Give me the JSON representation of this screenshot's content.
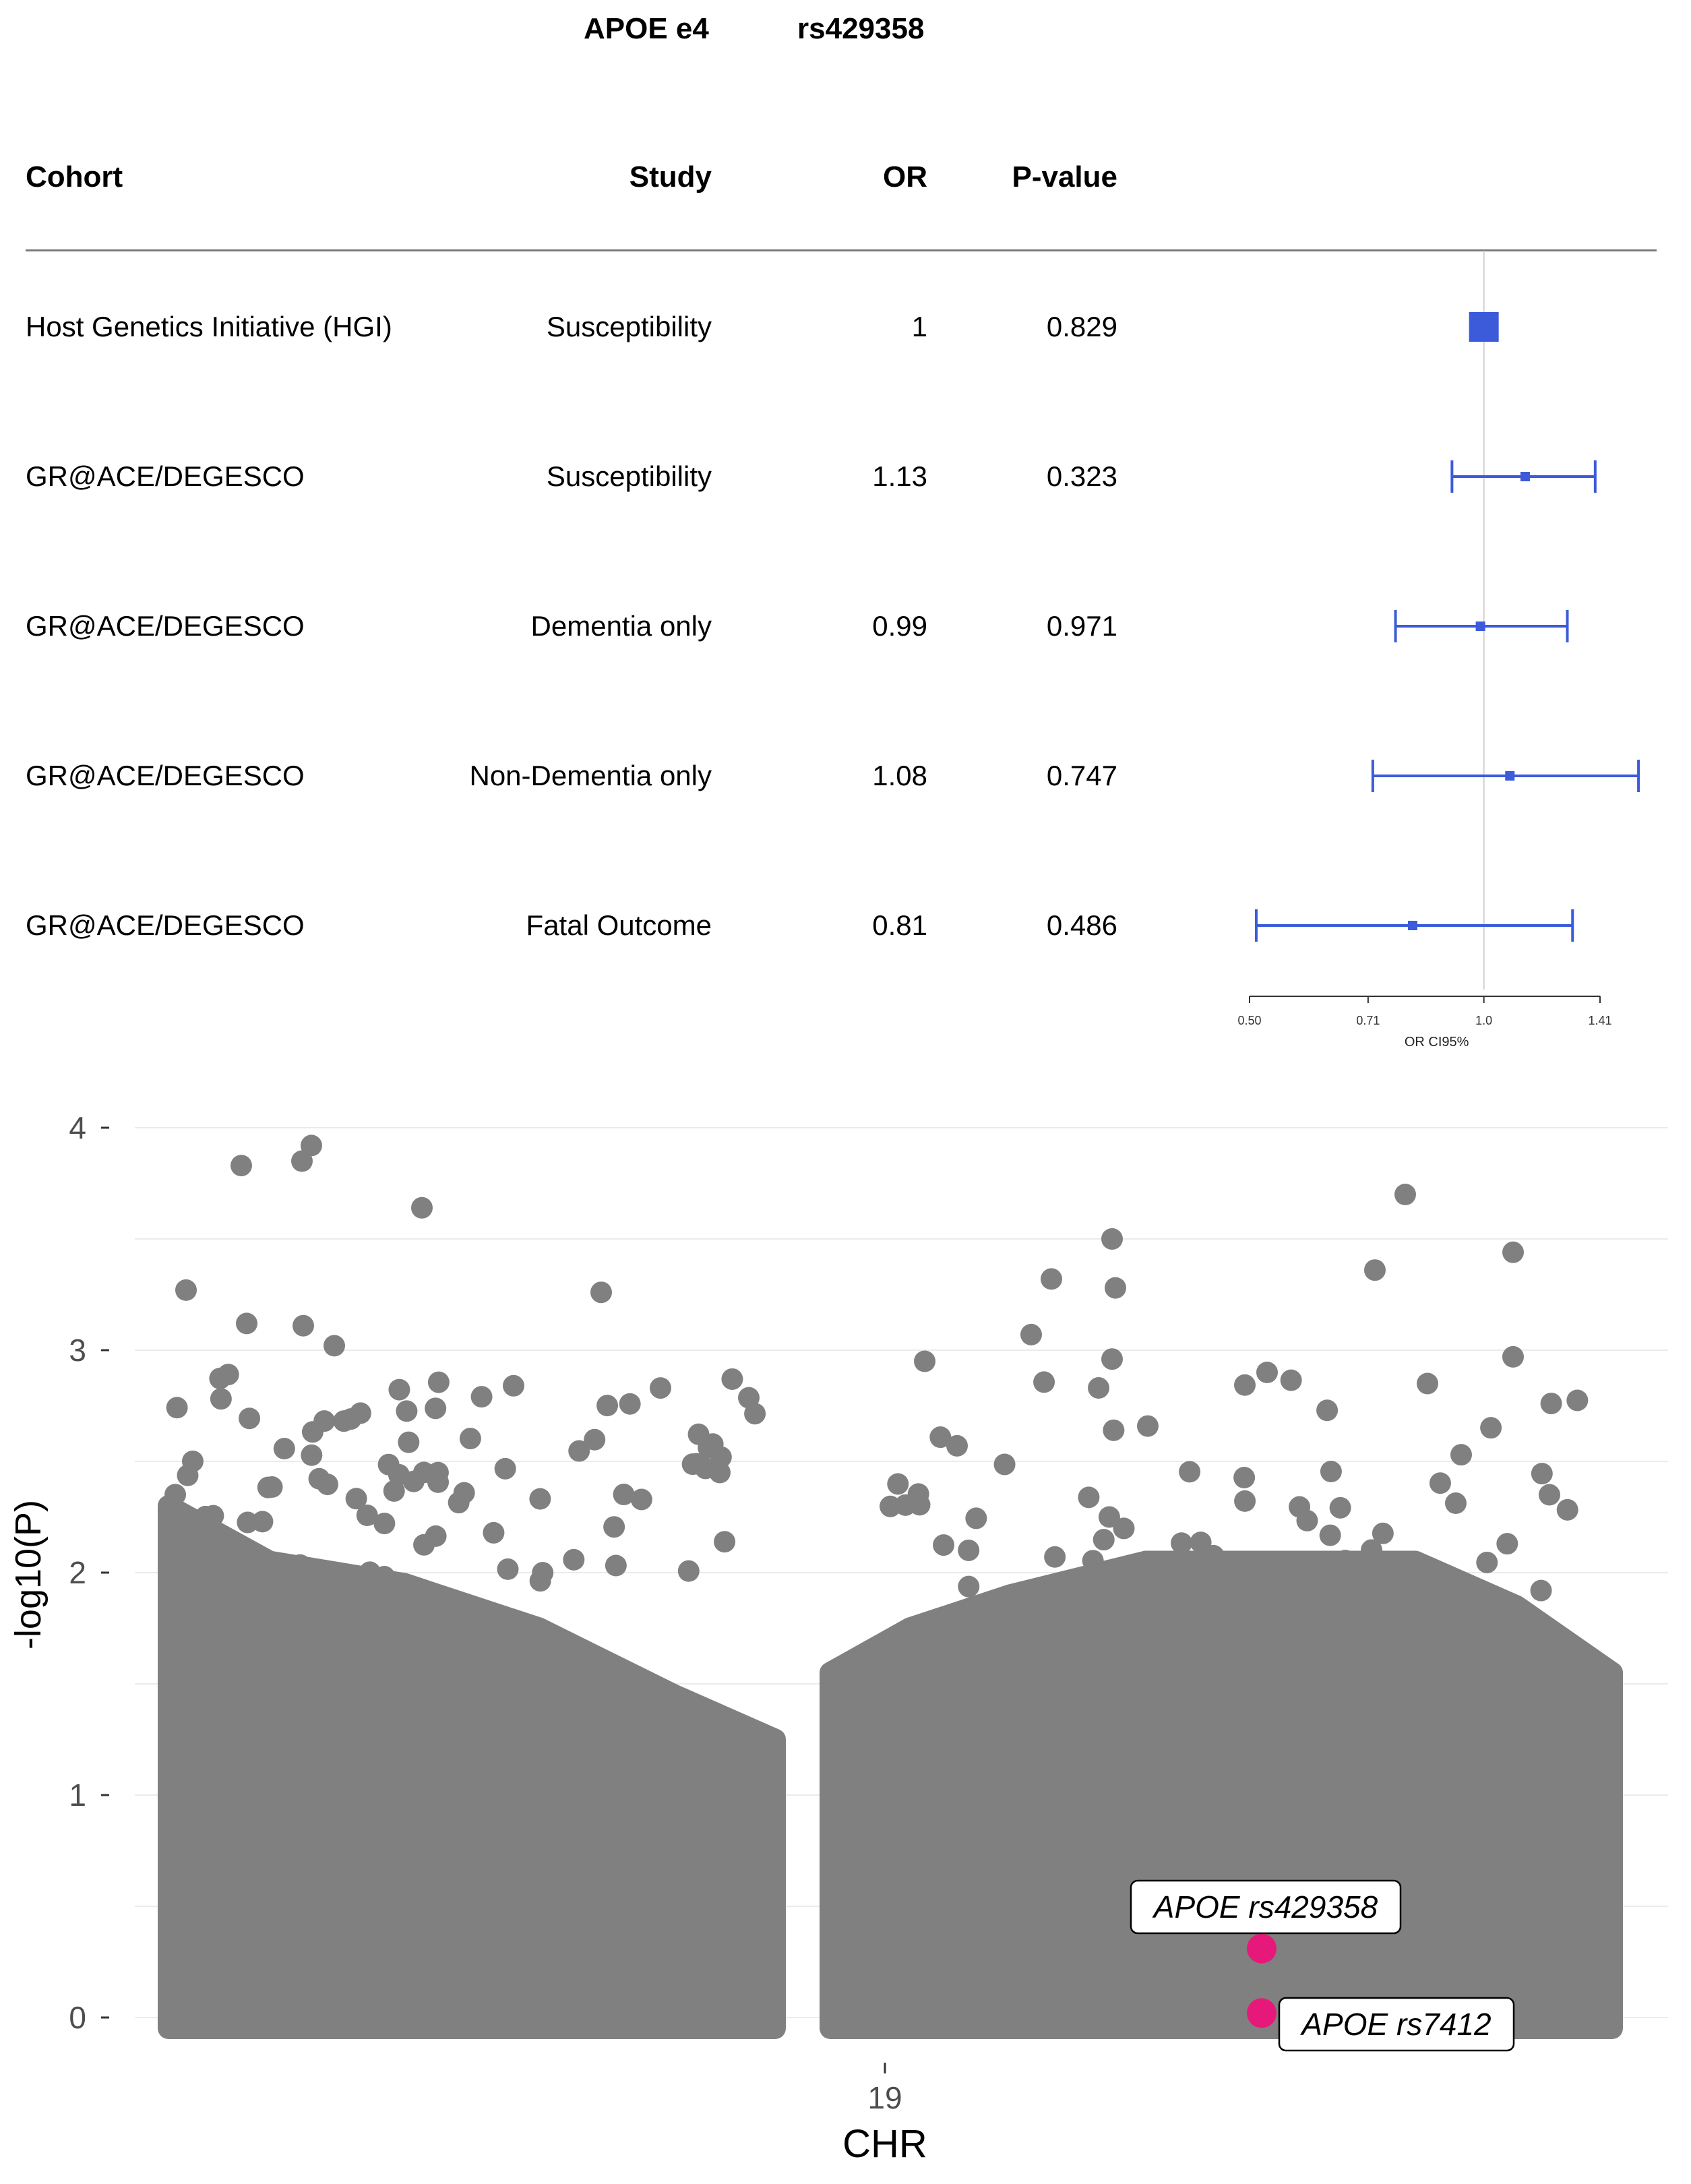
{
  "forest_title": {
    "gene": "APOE e4",
    "snp": "rs429358"
  },
  "table": {
    "headers": {
      "cohort": "Cohort",
      "study": "Study",
      "or": "OR",
      "pvalue": "P-value"
    },
    "rows": [
      {
        "cohort": "Host Genetics Initiative (HGI)",
        "study": "Susceptibility",
        "or": "1",
        "pvalue": "0.829"
      },
      {
        "cohort": "GR@ACE/DEGESCO",
        "study": "Susceptibility",
        "or": "1.13",
        "pvalue": "0.323"
      },
      {
        "cohort": "GR@ACE/DEGESCO",
        "study": "Dementia only",
        "or": "0.99",
        "pvalue": "0.971"
      },
      {
        "cohort": "GR@ACE/DEGESCO",
        "study": "Non-Dementia only",
        "or": "1.08",
        "pvalue": "0.747"
      },
      {
        "cohort": "GR@ACE/DEGESCO",
        "study": "Fatal Outcome",
        "or": "0.81",
        "pvalue": "0.486"
      }
    ]
  },
  "chart_data": [
    {
      "type": "forest",
      "title": "APOE e4 rs429358",
      "xlabel": "OR CI95%",
      "scale": "log",
      "xlim": [
        0.5,
        1.41
      ],
      "xticks": [
        {
          "value": 0.5,
          "label": "0.50"
        },
        {
          "value": 0.71,
          "label": "0.71"
        },
        {
          "value": 1.0,
          "label": "1.0"
        },
        {
          "value": 1.41,
          "label": "1.41"
        }
      ],
      "reference_line": 1.0,
      "color": "#3b5bdb",
      "points": [
        {
          "or": 1.0,
          "lower": null,
          "upper": null
        },
        {
          "or": 1.13,
          "lower": 0.91,
          "upper": 1.39
        },
        {
          "or": 0.99,
          "lower": 0.77,
          "upper": 1.28
        },
        {
          "or": 1.08,
          "lower": 0.72,
          "upper": 1.58
        },
        {
          "or": 0.81,
          "lower": 0.51,
          "upper": 1.3
        }
      ]
    },
    {
      "type": "scatter",
      "subtype": "manhattan",
      "xlabel": "CHR",
      "ylabel": "-log10(P)",
      "ylim": [
        0,
        4
      ],
      "yticks": [
        0,
        1,
        2,
        3,
        4
      ],
      "xticks": [
        "19"
      ],
      "point_color": "#808080",
      "highlight_color": "#e6197a",
      "annotated_points": [
        {
          "label": "APOE rs429358",
          "neglog10p": 0.31
        },
        {
          "label": "APOE rs7412",
          "neglog10p": 0.02
        }
      ],
      "top_points": [
        3.92,
        3.85,
        3.83,
        3.7,
        3.64,
        3.5,
        3.44,
        3.36,
        3.32,
        3.28,
        3.27,
        3.26,
        3.12,
        3.11,
        3.07,
        3.02,
        2.97,
        2.96,
        2.95,
        2.9,
        2.85,
        2.84,
        2.83,
        2.57,
        2.53,
        2.45
      ]
    }
  ]
}
